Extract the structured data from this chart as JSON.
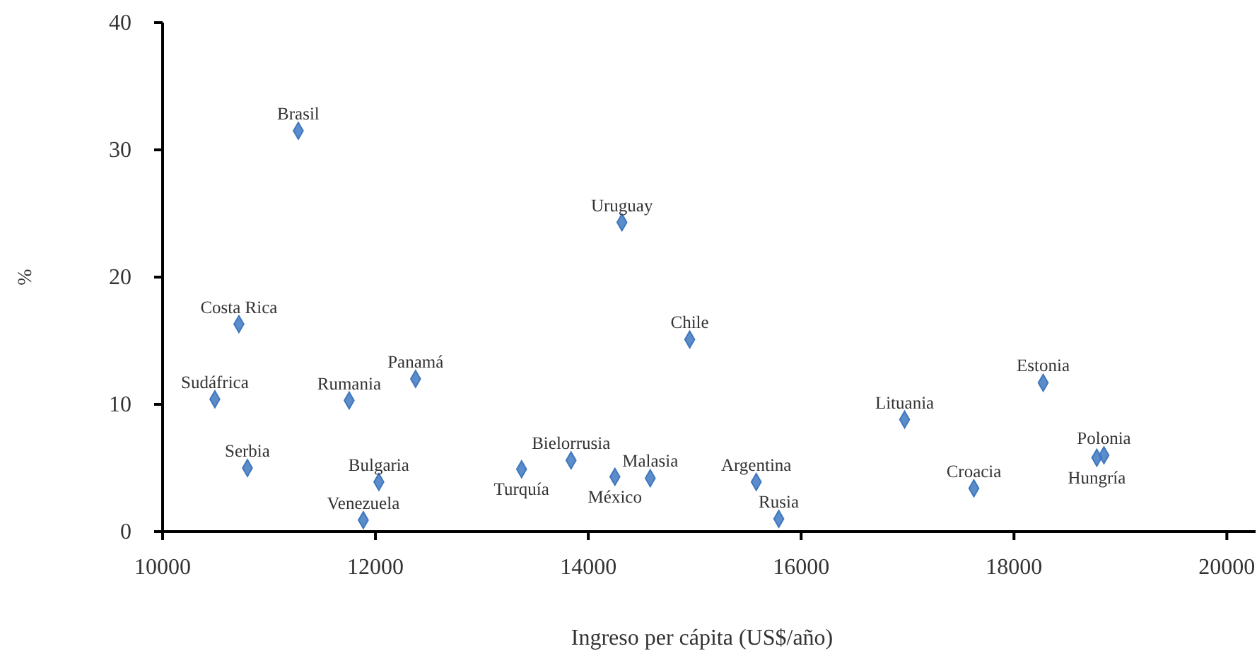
{
  "chart_data": {
    "type": "scatter",
    "xlabel": "Ingreso per cápita (US$/año)",
    "ylabel": "%",
    "x": [
      11275,
      14316,
      14953,
      10717,
      12377,
      10491,
      11753,
      10797,
      12032,
      11886,
      13838,
      13373,
      14582,
      14250,
      15578,
      15790,
      16972,
      17623,
      18274,
      18845,
      18778
    ],
    "series": [
      {
        "color": "#3f78c0",
        "values": [
          31.5,
          24.3,
          15.1,
          16.3,
          12.0,
          10.4,
          10.3,
          5.0,
          3.9,
          0.9,
          5.6,
          4.9,
          4.2,
          4.3,
          3.9,
          1.0,
          8.8,
          3.4,
          11.7,
          6.0,
          5.8
        ]
      }
    ],
    "marker": "diamond",
    "xlim": [
      10000,
      20270
    ],
    "xticks": [
      10000,
      12000,
      14000,
      16000,
      18000,
      20000
    ],
    "ylim": [
      0,
      40
    ],
    "yticks": [
      0,
      10,
      20,
      30,
      40
    ],
    "annotations": [
      {
        "text": "Brasil",
        "x": 11275,
        "y": 31.5
      },
      {
        "text": "Uruguay",
        "x": 14316,
        "y": 24.3
      },
      {
        "text": "Chile",
        "x": 14953,
        "y": 15.1
      },
      {
        "text": "Costa Rica",
        "x": 10717,
        "y": 16.3
      },
      {
        "text": "Panamá",
        "x": 12377,
        "y": 12.0
      },
      {
        "text": "Sudáfrica",
        "x": 10491,
        "y": 10.4
      },
      {
        "text": "Rumania",
        "x": 11753,
        "y": 10.3
      },
      {
        "text": "Serbia",
        "x": 10797,
        "y": 5.0
      },
      {
        "text": "Bulgaria",
        "x": 12032,
        "y": 3.9
      },
      {
        "text": "Venezuela",
        "x": 11886,
        "y": 0.9
      },
      {
        "text": "Bielorrusia",
        "x": 13838,
        "y": 5.6
      },
      {
        "text": "Turquía",
        "x": 13373,
        "y": 4.9
      },
      {
        "text": "Malasia",
        "x": 14582,
        "y": 4.2
      },
      {
        "text": "México",
        "x": 14250,
        "y": 4.3
      },
      {
        "text": "Argentina",
        "x": 15578,
        "y": 3.9
      },
      {
        "text": "Rusia",
        "x": 15790,
        "y": 1.0
      },
      {
        "text": "Lituania",
        "x": 16972,
        "y": 8.8
      },
      {
        "text": "Croacia",
        "x": 17623,
        "y": 3.4
      },
      {
        "text": "Estonia",
        "x": 18274,
        "y": 11.7
      },
      {
        "text": "Polonia",
        "x": 18845,
        "y": 6.0
      },
      {
        "text": "Hungría",
        "x": 18778,
        "y": 5.8
      }
    ]
  }
}
